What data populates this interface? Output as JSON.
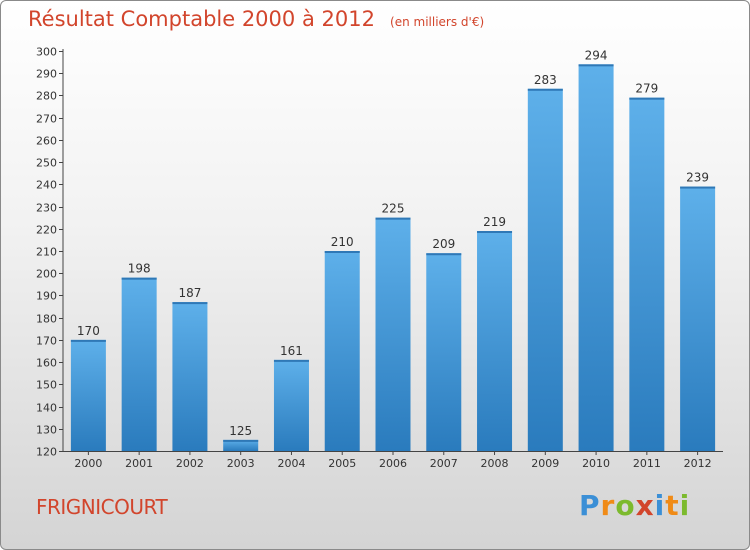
{
  "header": {
    "title": "Résultat Comptable 2000 à 2012",
    "subtitle": "(en milliers d'€)"
  },
  "footer": {
    "place": "FRIGNICOURT",
    "logo": "Proxiti"
  },
  "colors": {
    "title": "#d2452c",
    "bar_top": "#5eb0ea",
    "bar_bottom": "#2a7bbd"
  },
  "chart_data": {
    "type": "bar",
    "title": "Résultat Comptable 2000 à 2012",
    "subtitle": "(en milliers d'€)",
    "xlabel": "",
    "ylabel": "",
    "categories": [
      "2000",
      "2001",
      "2002",
      "2003",
      "2004",
      "2005",
      "2006",
      "2007",
      "2008",
      "2009",
      "2010",
      "2011",
      "2012"
    ],
    "values": [
      170,
      198,
      187,
      125,
      161,
      210,
      225,
      209,
      219,
      283,
      294,
      279,
      239
    ],
    "ylim": [
      120,
      300
    ],
    "ytick_step": 10,
    "grid": false,
    "data_labels": true
  }
}
